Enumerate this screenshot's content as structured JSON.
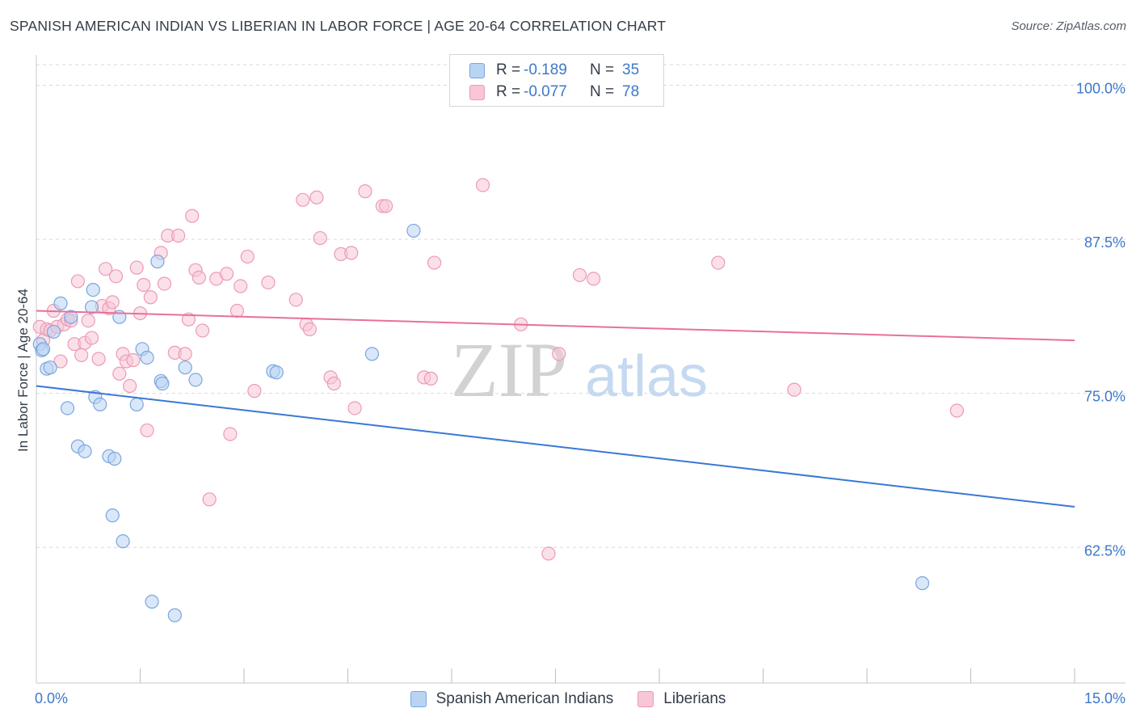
{
  "title": "SPANISH AMERICAN INDIAN VS LIBERIAN IN LABOR FORCE | AGE 20-64 CORRELATION CHART",
  "source": "Source: ZipAtlas.com",
  "watermark": {
    "zip": "ZIP",
    "atlas": "atlas"
  },
  "colors": {
    "blue": "#3a78d4",
    "blue_fill": "#b9d3f3",
    "blue_stroke": "#7aa6e0",
    "pink": "#e8709a",
    "pink_fill": "#f8c6d6",
    "pink_stroke": "#ec9ab6",
    "tick_label": "#3d78c9",
    "grid": "#d9d9d9"
  },
  "legend_top": [
    {
      "r_label": "R =",
      "r_value": "-0.189",
      "n_label": "N =",
      "n_value": "35"
    },
    {
      "r_label": "R =",
      "r_value": "-0.077",
      "n_label": "N =",
      "n_value": "78"
    }
  ],
  "legend_bottom": [
    "Spanish American Indians",
    "Liberians"
  ],
  "chart_data": {
    "type": "scatter",
    "title": "SPANISH AMERICAN INDIAN VS LIBERIAN IN LABOR FORCE | AGE 20-64 CORRELATION CHART",
    "xlabel": "",
    "ylabel": "In Labor Force | Age 20-64",
    "xlim": [
      0.0,
      15.0
    ],
    "ylim": [
      51.5,
      102.0
    ],
    "x_tick_labels": [
      "0.0%",
      "15.0%"
    ],
    "y_ticks": [
      62.5,
      75.0,
      87.5,
      100.0
    ],
    "y_tick_labels": [
      "62.5%",
      "75.0%",
      "87.5%",
      "100.0%"
    ],
    "grid": "horizontal dashed",
    "series": [
      {
        "name": "Spanish American Indians",
        "r": -0.189,
        "n": 35,
        "trend": {
          "x": [
            0.0,
            15.0
          ],
          "y": [
            75.6,
            65.8
          ]
        },
        "points": [
          [
            0.05,
            79.0
          ],
          [
            0.08,
            78.5
          ],
          [
            0.1,
            78.6
          ],
          [
            0.15,
            77.0
          ],
          [
            0.2,
            77.1
          ],
          [
            0.25,
            80.0
          ],
          [
            0.35,
            82.3
          ],
          [
            0.45,
            73.8
          ],
          [
            0.5,
            81.2
          ],
          [
            0.6,
            70.7
          ],
          [
            0.7,
            70.3
          ],
          [
            0.8,
            82.0
          ],
          [
            0.82,
            83.4
          ],
          [
            0.85,
            74.7
          ],
          [
            0.92,
            74.1
          ],
          [
            1.05,
            69.9
          ],
          [
            1.13,
            69.7
          ],
          [
            1.1,
            65.1
          ],
          [
            1.2,
            81.2
          ],
          [
            1.25,
            63.0
          ],
          [
            1.45,
            74.1
          ],
          [
            1.53,
            78.6
          ],
          [
            1.6,
            77.9
          ],
          [
            1.67,
            58.1
          ],
          [
            1.75,
            85.7
          ],
          [
            1.8,
            76.0
          ],
          [
            1.82,
            75.8
          ],
          [
            2.0,
            57.0
          ],
          [
            2.15,
            77.1
          ],
          [
            2.3,
            76.1
          ],
          [
            3.42,
            76.8
          ],
          [
            3.47,
            76.7
          ],
          [
            4.85,
            78.2
          ],
          [
            5.45,
            88.2
          ],
          [
            12.8,
            59.6
          ]
        ]
      },
      {
        "name": "Liberians",
        "r": -0.077,
        "n": 78,
        "trend": {
          "x": [
            0.0,
            15.0
          ],
          "y": [
            81.7,
            79.3
          ]
        },
        "points": [
          [
            0.05,
            80.4
          ],
          [
            0.1,
            79.3
          ],
          [
            0.15,
            80.2
          ],
          [
            0.2,
            80.1
          ],
          [
            0.25,
            81.7
          ],
          [
            0.3,
            80.4
          ],
          [
            0.35,
            77.6
          ],
          [
            0.4,
            80.6
          ],
          [
            0.45,
            81.0
          ],
          [
            0.5,
            80.9
          ],
          [
            0.55,
            79.0
          ],
          [
            0.6,
            84.1
          ],
          [
            0.65,
            78.1
          ],
          [
            0.7,
            79.1
          ],
          [
            0.75,
            80.9
          ],
          [
            0.8,
            79.5
          ],
          [
            0.9,
            77.8
          ],
          [
            0.95,
            82.1
          ],
          [
            1.0,
            85.1
          ],
          [
            1.05,
            81.9
          ],
          [
            1.1,
            82.4
          ],
          [
            1.15,
            84.5
          ],
          [
            1.2,
            76.6
          ],
          [
            1.25,
            78.2
          ],
          [
            1.3,
            77.6
          ],
          [
            1.35,
            75.6
          ],
          [
            1.4,
            77.7
          ],
          [
            1.45,
            85.2
          ],
          [
            1.5,
            81.5
          ],
          [
            1.55,
            83.8
          ],
          [
            1.6,
            72.0
          ],
          [
            1.65,
            82.8
          ],
          [
            1.8,
            86.4
          ],
          [
            1.85,
            83.9
          ],
          [
            1.9,
            87.8
          ],
          [
            2.0,
            78.3
          ],
          [
            2.05,
            87.8
          ],
          [
            2.15,
            78.2
          ],
          [
            2.2,
            81.0
          ],
          [
            2.25,
            89.4
          ],
          [
            2.3,
            85.0
          ],
          [
            2.35,
            84.4
          ],
          [
            2.4,
            80.1
          ],
          [
            2.5,
            66.4
          ],
          [
            2.6,
            84.3
          ],
          [
            2.75,
            84.7
          ],
          [
            2.8,
            71.7
          ],
          [
            2.9,
            81.7
          ],
          [
            2.95,
            83.7
          ],
          [
            3.05,
            86.1
          ],
          [
            3.15,
            75.2
          ],
          [
            3.35,
            84.0
          ],
          [
            3.75,
            82.6
          ],
          [
            3.85,
            90.7
          ],
          [
            3.9,
            80.6
          ],
          [
            3.95,
            80.2
          ],
          [
            4.05,
            90.9
          ],
          [
            4.1,
            87.6
          ],
          [
            4.25,
            76.3
          ],
          [
            4.3,
            75.8
          ],
          [
            4.4,
            86.3
          ],
          [
            4.55,
            86.4
          ],
          [
            4.6,
            73.8
          ],
          [
            4.75,
            91.4
          ],
          [
            5.0,
            90.2
          ],
          [
            5.05,
            90.2
          ],
          [
            5.6,
            76.3
          ],
          [
            5.7,
            76.2
          ],
          [
            5.75,
            85.6
          ],
          [
            6.45,
            91.9
          ],
          [
            7.0,
            80.6
          ],
          [
            7.4,
            62.0
          ],
          [
            7.55,
            78.2
          ],
          [
            7.85,
            84.6
          ],
          [
            8.05,
            84.3
          ],
          [
            9.85,
            85.6
          ],
          [
            10.95,
            75.3
          ],
          [
            13.3,
            73.6
          ]
        ]
      }
    ]
  }
}
